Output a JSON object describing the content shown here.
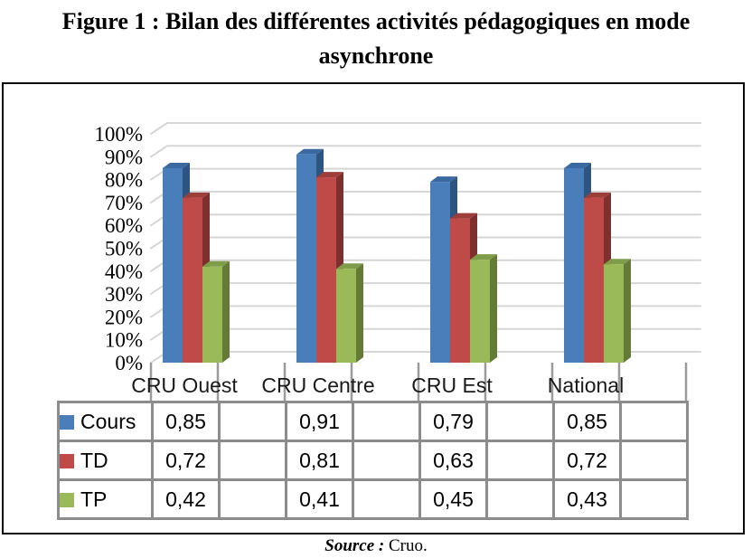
{
  "figure": {
    "title_line1": "Figure 1 : Bilan des différentes activités pédagogiques en mode",
    "title_line2": "asynchrone",
    "source_label": "Source :",
    "source_value": "Cruo."
  },
  "chart_data": {
    "type": "bar",
    "style": "3d-clustered-column-with-data-table",
    "title": "Bilan des différentes activités pédagogiques en mode asynchrone",
    "categories": [
      "CRU Ouest",
      "CRU Centre",
      "CRU Est",
      "National"
    ],
    "series": [
      {
        "name": "Cours",
        "values": [
          0.85,
          0.91,
          0.79,
          0.85
        ],
        "display_values": [
          "0,85",
          "0,91",
          "0,79",
          "0,85"
        ],
        "color": "#4A7EBB",
        "color_top": "#3A69A2",
        "color_side": "#2E5480"
      },
      {
        "name": "TD",
        "values": [
          0.72,
          0.81,
          0.63,
          0.72
        ],
        "display_values": [
          "0,72",
          "0,81",
          "0,63",
          "0,72"
        ],
        "color": "#BE4B48",
        "color_top": "#9E3E3B",
        "color_side": "#7D302E"
      },
      {
        "name": "TP",
        "values": [
          0.42,
          0.41,
          0.45,
          0.43
        ],
        "display_values": [
          "0,42",
          "0,41",
          "0,45",
          "0,43"
        ],
        "color": "#9ABA59",
        "color_top": "#7F9C48",
        "color_side": "#647B38"
      }
    ],
    "y_axis": {
      "tick_labels": [
        "100%",
        "90%",
        "80%",
        "70%",
        "60%",
        "50%",
        "40%",
        "30%",
        "20%",
        "10%",
        "0%"
      ],
      "min": 0,
      "max": 1,
      "step": 0.1,
      "format": "percent"
    },
    "legend_position": "data-table-left",
    "grid": true,
    "grid_color": "#D6D6D6",
    "tick_color": "#9B9B9B",
    "table_border_color": "#8C8C8C"
  }
}
